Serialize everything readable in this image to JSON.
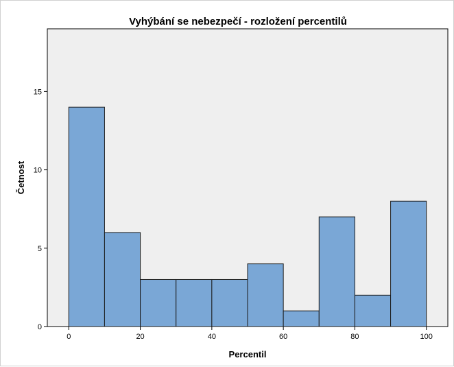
{
  "chart_data": {
    "type": "bar",
    "title": "Vyhýbání se nebezpečí - rozložení percentilů",
    "xlabel": "Percentil",
    "ylabel": "Četnost",
    "bins": [
      {
        "start": 0,
        "end": 10,
        "count": 14
      },
      {
        "start": 10,
        "end": 20,
        "count": 6
      },
      {
        "start": 20,
        "end": 30,
        "count": 3
      },
      {
        "start": 30,
        "end": 40,
        "count": 3
      },
      {
        "start": 40,
        "end": 50,
        "count": 3
      },
      {
        "start": 50,
        "end": 60,
        "count": 4
      },
      {
        "start": 60,
        "end": 70,
        "count": 1
      },
      {
        "start": 70,
        "end": 80,
        "count": 7
      },
      {
        "start": 80,
        "end": 90,
        "count": 2
      },
      {
        "start": 90,
        "end": 100,
        "count": 8
      }
    ],
    "xlim": [
      -6,
      106
    ],
    "ylim": [
      0,
      19
    ],
    "xticks": [
      "0",
      "20",
      "40",
      "60",
      "80",
      "100"
    ],
    "yticks": [
      "0",
      "5",
      "10",
      "15"
    ],
    "grid": false,
    "colors": {
      "bar_fill": "#7aa7d6",
      "bar_stroke": "#1a1a1a",
      "plot_background": "#efefef",
      "axis": "#000000"
    }
  }
}
